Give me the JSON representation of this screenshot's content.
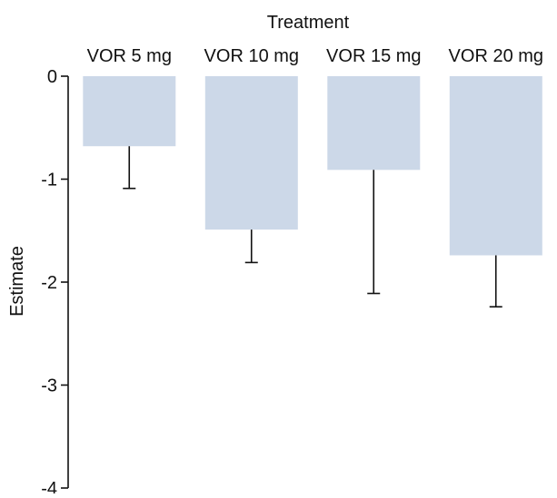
{
  "chart_data": {
    "type": "bar",
    "title": "Treatment",
    "xlabel": "",
    "ylabel": "Estimate",
    "categories": [
      "VOR 5 mg",
      "VOR 10 mg",
      "VOR 15 mg",
      "VOR 20 mg"
    ],
    "values": [
      -0.68,
      -1.49,
      -0.91,
      -1.74
    ],
    "error_lower": [
      -1.09,
      -1.81,
      -2.11,
      -2.24
    ],
    "ylim": [
      -4,
      0
    ],
    "yticks": [
      0,
      -1,
      -2,
      -3,
      -4
    ],
    "yticklabels": [
      "0",
      "-1",
      "-2",
      "-3",
      "-4"
    ],
    "grid": false,
    "category_axis_position": "top",
    "colors": {
      "bar": "#ccd8e8",
      "axis": "#111111",
      "error_bar": "#111111",
      "text": "#111111"
    }
  }
}
